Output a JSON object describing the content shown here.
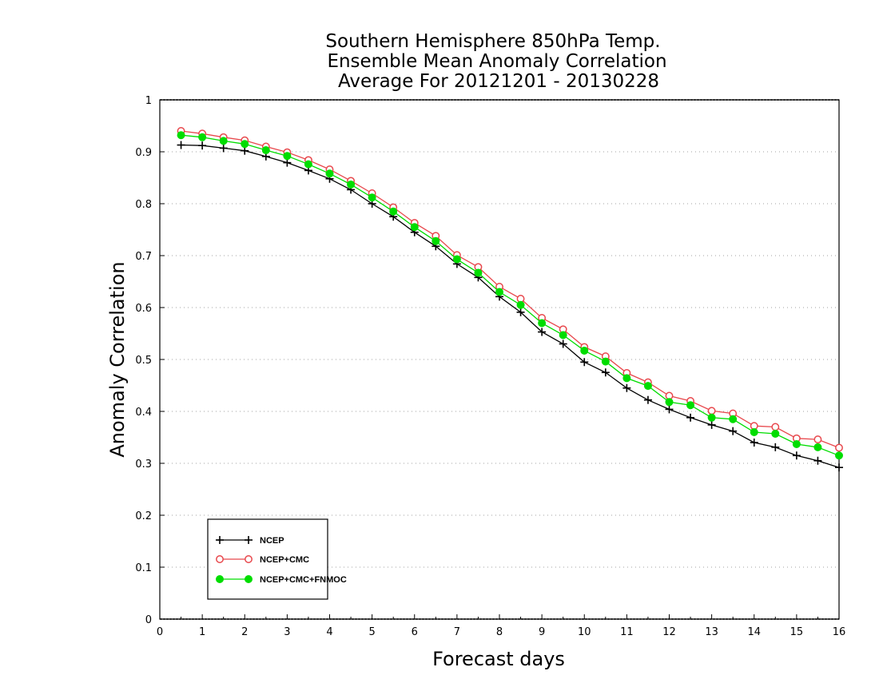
{
  "chart_data": {
    "type": "line",
    "title": [
      "Southern Hemisphere 850hPa Temp.",
      "Ensemble Mean Anomaly Correlation",
      "Average For 20121201 - 20130228"
    ],
    "xlabel": "Forecast days",
    "ylabel": "Anomaly Correlation",
    "xlim": [
      0,
      16
    ],
    "ylim": [
      0,
      1
    ],
    "xticks": [
      0,
      1,
      2,
      3,
      4,
      5,
      6,
      7,
      8,
      9,
      10,
      11,
      12,
      13,
      14,
      15,
      16
    ],
    "yticks": [
      0,
      0.1,
      0.2,
      0.3,
      0.4,
      0.5,
      0.6,
      0.7,
      0.8,
      0.9,
      1
    ],
    "grid": "horizontal-dotted",
    "legend_position": "bottom-left",
    "x": [
      0.5,
      1,
      1.5,
      2,
      2.5,
      3,
      3.5,
      4,
      4.5,
      5,
      5.5,
      6,
      6.5,
      7,
      7.5,
      8,
      8.5,
      9,
      9.5,
      10,
      10.5,
      11,
      11.5,
      12,
      12.5,
      13,
      13.5,
      14,
      14.5,
      15,
      15.5,
      16
    ],
    "series": [
      {
        "name": "NCEP",
        "marker": "plus",
        "color": "#000000",
        "values": [
          0.913,
          0.912,
          0.907,
          0.902,
          0.891,
          0.879,
          0.864,
          0.848,
          0.827,
          0.8,
          0.775,
          0.745,
          0.718,
          0.684,
          0.658,
          0.621,
          0.591,
          0.553,
          0.53,
          0.495,
          0.475,
          0.445,
          0.422,
          0.404,
          0.388,
          0.374,
          0.362,
          0.34,
          0.331,
          0.315,
          0.305,
          0.292
        ]
      },
      {
        "name": "NCEP+CMC",
        "marker": "open-circle",
        "color": "#e8474c",
        "values": [
          0.94,
          0.935,
          0.928,
          0.922,
          0.91,
          0.899,
          0.884,
          0.866,
          0.844,
          0.82,
          0.793,
          0.763,
          0.738,
          0.701,
          0.678,
          0.64,
          0.617,
          0.58,
          0.558,
          0.524,
          0.506,
          0.474,
          0.456,
          0.43,
          0.42,
          0.401,
          0.396,
          0.372,
          0.37,
          0.348,
          0.346,
          0.33
        ]
      },
      {
        "name": "NCEP+CMC+FNMOC",
        "marker": "filled-circle",
        "color": "#00dd00",
        "values": [
          0.932,
          0.928,
          0.921,
          0.915,
          0.903,
          0.892,
          0.876,
          0.858,
          0.837,
          0.812,
          0.785,
          0.755,
          0.728,
          0.693,
          0.667,
          0.63,
          0.605,
          0.57,
          0.547,
          0.517,
          0.496,
          0.464,
          0.449,
          0.418,
          0.412,
          0.388,
          0.385,
          0.36,
          0.357,
          0.337,
          0.331,
          0.315
        ]
      }
    ]
  }
}
